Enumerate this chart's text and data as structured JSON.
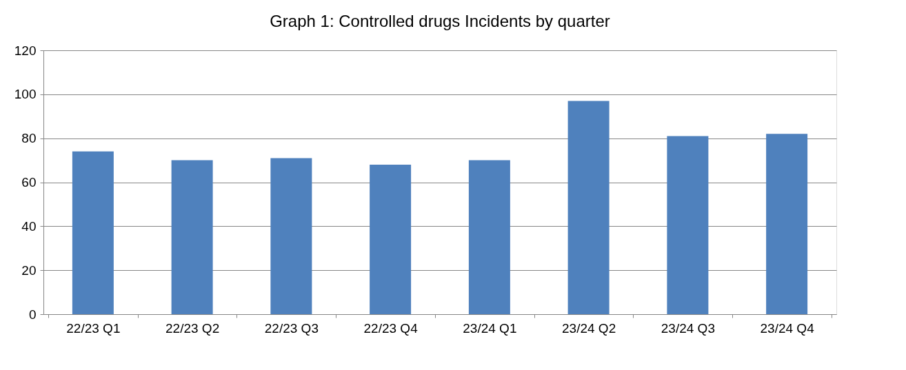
{
  "chart_data": {
    "type": "bar",
    "title": "Graph 1: Controlled drugs Incidents by quarter",
    "categories": [
      "22/23 Q1",
      "22/23 Q2",
      "22/23 Q3",
      "22/23 Q4",
      "23/24 Q1",
      "23/24 Q2",
      "23/24 Q3",
      "23/24 Q4"
    ],
    "values": [
      74,
      70,
      71,
      68,
      70,
      97,
      81,
      82
    ],
    "color": "#4f81bd",
    "ylim": [
      0,
      120
    ],
    "yticks": [
      0,
      20,
      40,
      60,
      80,
      100,
      120
    ],
    "grid": "y"
  }
}
